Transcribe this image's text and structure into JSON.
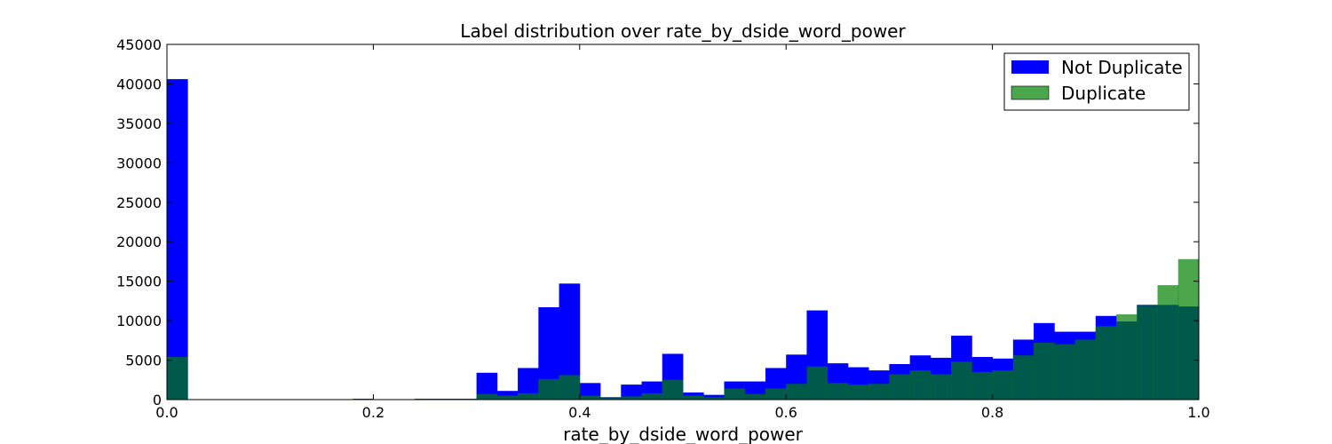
{
  "chart_data": {
    "type": "bar",
    "subtype": "overlapping-histogram",
    "title": "Label distribution over rate_by_dside_word_power",
    "xlabel": "rate_by_dside_word_power",
    "ylabel": "",
    "xlim": [
      0.0,
      1.0
    ],
    "ylim": [
      0,
      45000
    ],
    "x_ticks": [
      "0.0",
      "0.2",
      "0.4",
      "0.6",
      "0.8",
      "1.0"
    ],
    "y_ticks": [
      "0",
      "5000",
      "10000",
      "15000",
      "20000",
      "25000",
      "30000",
      "35000",
      "40000",
      "45000"
    ],
    "bin_width": 0.02,
    "bin_starts": [
      0.0,
      0.02,
      0.04,
      0.06,
      0.08,
      0.1,
      0.12,
      0.14,
      0.16,
      0.18,
      0.2,
      0.22,
      0.24,
      0.26,
      0.28,
      0.3,
      0.32,
      0.34,
      0.36,
      0.38,
      0.4,
      0.42,
      0.44,
      0.46,
      0.48,
      0.5,
      0.52,
      0.54,
      0.56,
      0.58,
      0.6,
      0.62,
      0.64,
      0.66,
      0.68,
      0.7,
      0.72,
      0.74,
      0.76,
      0.78,
      0.8,
      0.82,
      0.84,
      0.86,
      0.88,
      0.9,
      0.92,
      0.94,
      0.96,
      0.98
    ],
    "series": [
      {
        "name": "Not Duplicate",
        "color": "#0000ff",
        "values": [
          40600,
          0,
          0,
          0,
          0,
          0,
          0,
          0,
          0,
          100,
          50,
          50,
          100,
          100,
          100,
          3400,
          1100,
          4000,
          11700,
          14700,
          2100,
          300,
          1900,
          2300,
          5800,
          900,
          600,
          2300,
          2300,
          4000,
          5700,
          11300,
          4600,
          4100,
          3700,
          4500,
          5600,
          5300,
          8100,
          5400,
          5200,
          7600,
          9700,
          8600,
          8600,
          10600,
          9900,
          12000,
          12000,
          11800
        ]
      },
      {
        "name": "Duplicate",
        "color": "#008000",
        "alpha": 0.7,
        "values": [
          5400,
          0,
          0,
          0,
          0,
          0,
          0,
          0,
          0,
          50,
          20,
          20,
          50,
          50,
          50,
          700,
          500,
          800,
          2600,
          3100,
          500,
          200,
          400,
          800,
          2500,
          500,
          300,
          1400,
          700,
          1400,
          2000,
          4200,
          2100,
          1900,
          2000,
          3200,
          3700,
          3200,
          4800,
          3500,
          3700,
          5600,
          7200,
          7000,
          7600,
          9300,
          10800,
          11900,
          14500,
          17800
        ]
      }
    ],
    "legend": {
      "position": "top-right",
      "entries": [
        "Not Duplicate",
        "Duplicate"
      ]
    },
    "grid": false
  }
}
